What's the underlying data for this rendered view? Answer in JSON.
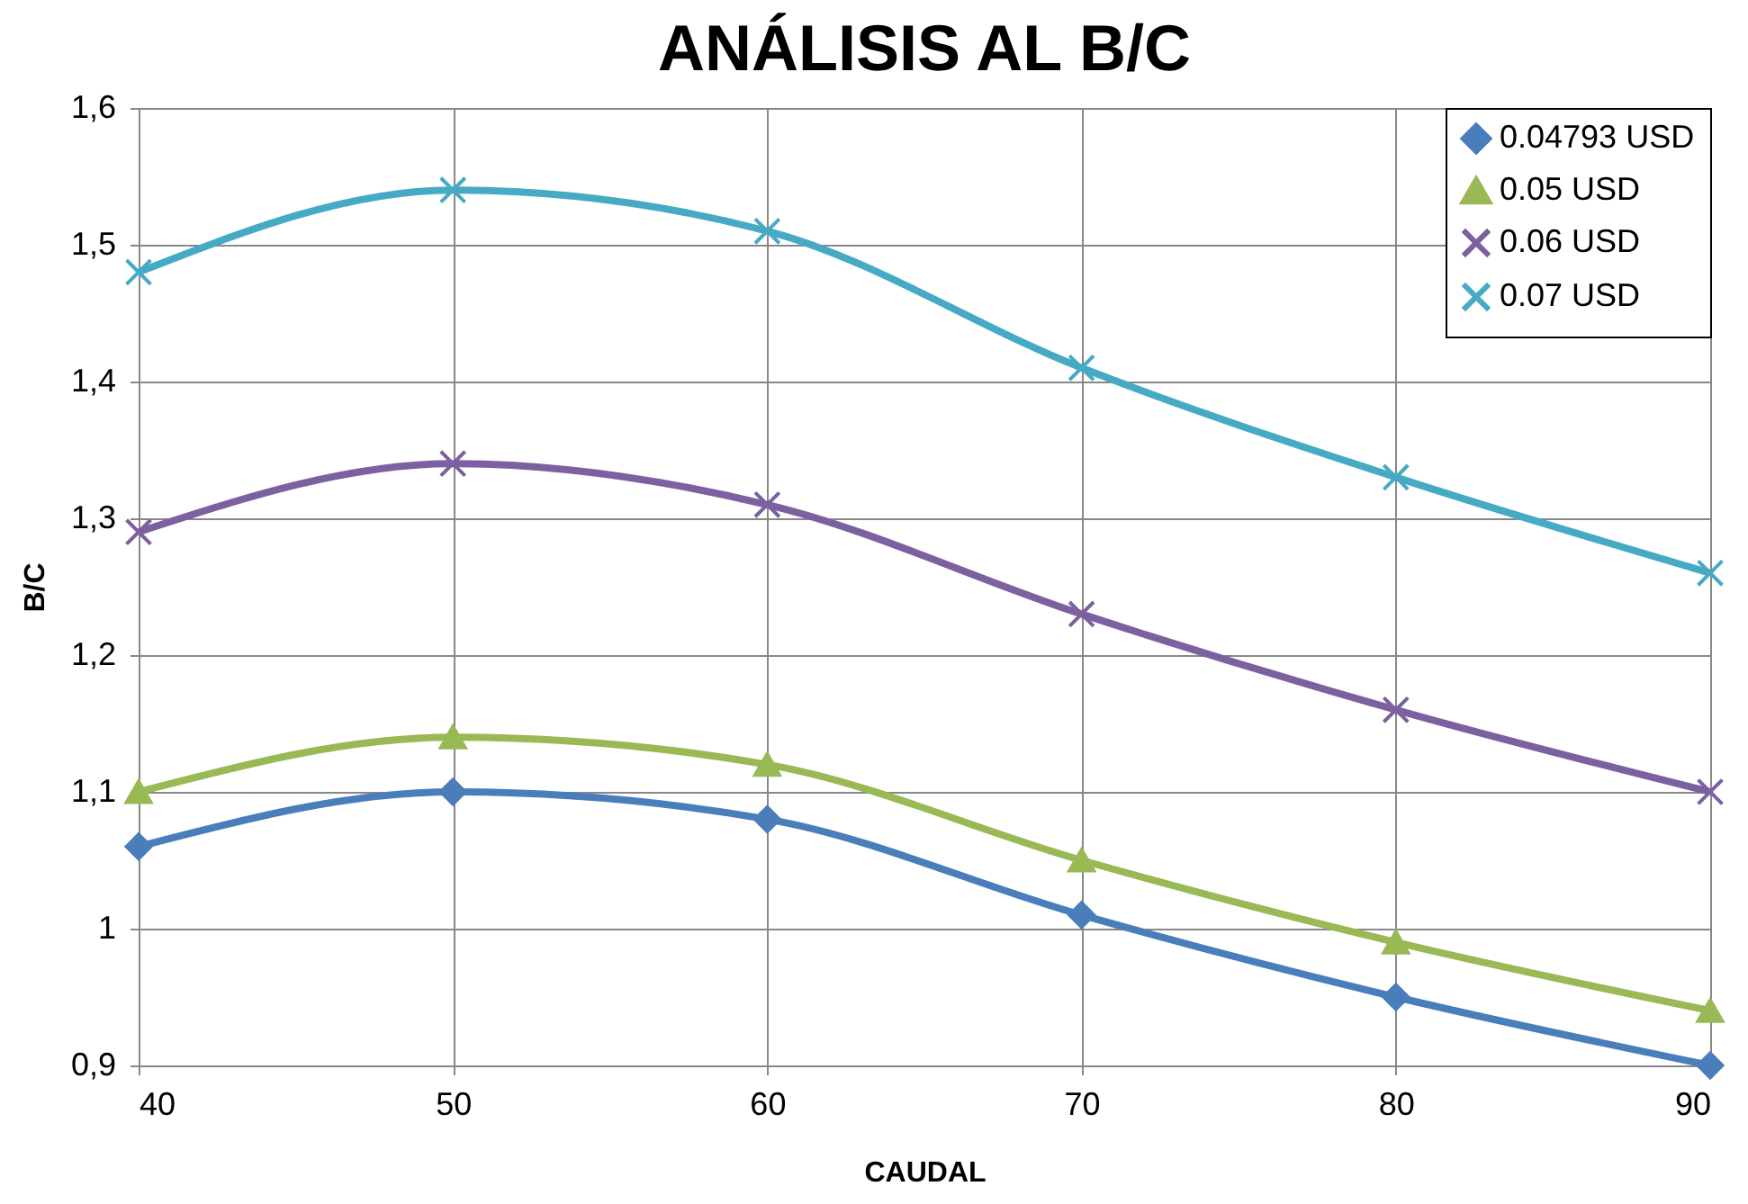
{
  "chart_data": {
    "type": "line",
    "title": "ANÁLISIS AL B/C",
    "xlabel": "CAUDAL",
    "ylabel": "B/C",
    "x": [
      40,
      50,
      60,
      70,
      80,
      90
    ],
    "series": [
      {
        "name": "0.04793 USD",
        "color": "#4a7ebb",
        "marker": "diamond",
        "values": [
          1.06,
          1.1,
          1.08,
          1.01,
          0.95,
          0.9
        ]
      },
      {
        "name": "0.05 USD",
        "color": "#98b954",
        "marker": "triangle",
        "values": [
          1.1,
          1.14,
          1.12,
          1.05,
          0.99,
          0.94
        ]
      },
      {
        "name": "0.06 USD",
        "color": "#7d60a0",
        "marker": "cross",
        "values": [
          1.29,
          1.34,
          1.31,
          1.23,
          1.16,
          1.1
        ]
      },
      {
        "name": "0.07 USD",
        "color": "#46aac5",
        "marker": "cross",
        "values": [
          1.48,
          1.54,
          1.51,
          1.41,
          1.33,
          1.26
        ]
      }
    ],
    "xlim": [
      40,
      90
    ],
    "xticks": [
      40,
      50,
      60,
      70,
      80,
      90
    ],
    "ylim": [
      0.9,
      1.6
    ],
    "yticks": [
      {
        "value": 0.9,
        "label": "0,9"
      },
      1,
      {
        "value": 1.1,
        "label": "1,1"
      },
      {
        "value": 1.2,
        "label": "1,2"
      },
      {
        "value": 1.3,
        "label": "1,3"
      },
      {
        "value": 1.4,
        "label": "1,4"
      },
      {
        "value": 1.5,
        "label": "1,5"
      },
      {
        "value": 1.6,
        "label": "1,6"
      }
    ],
    "grid": true,
    "legend": "top right",
    "line_style": "solid"
  }
}
